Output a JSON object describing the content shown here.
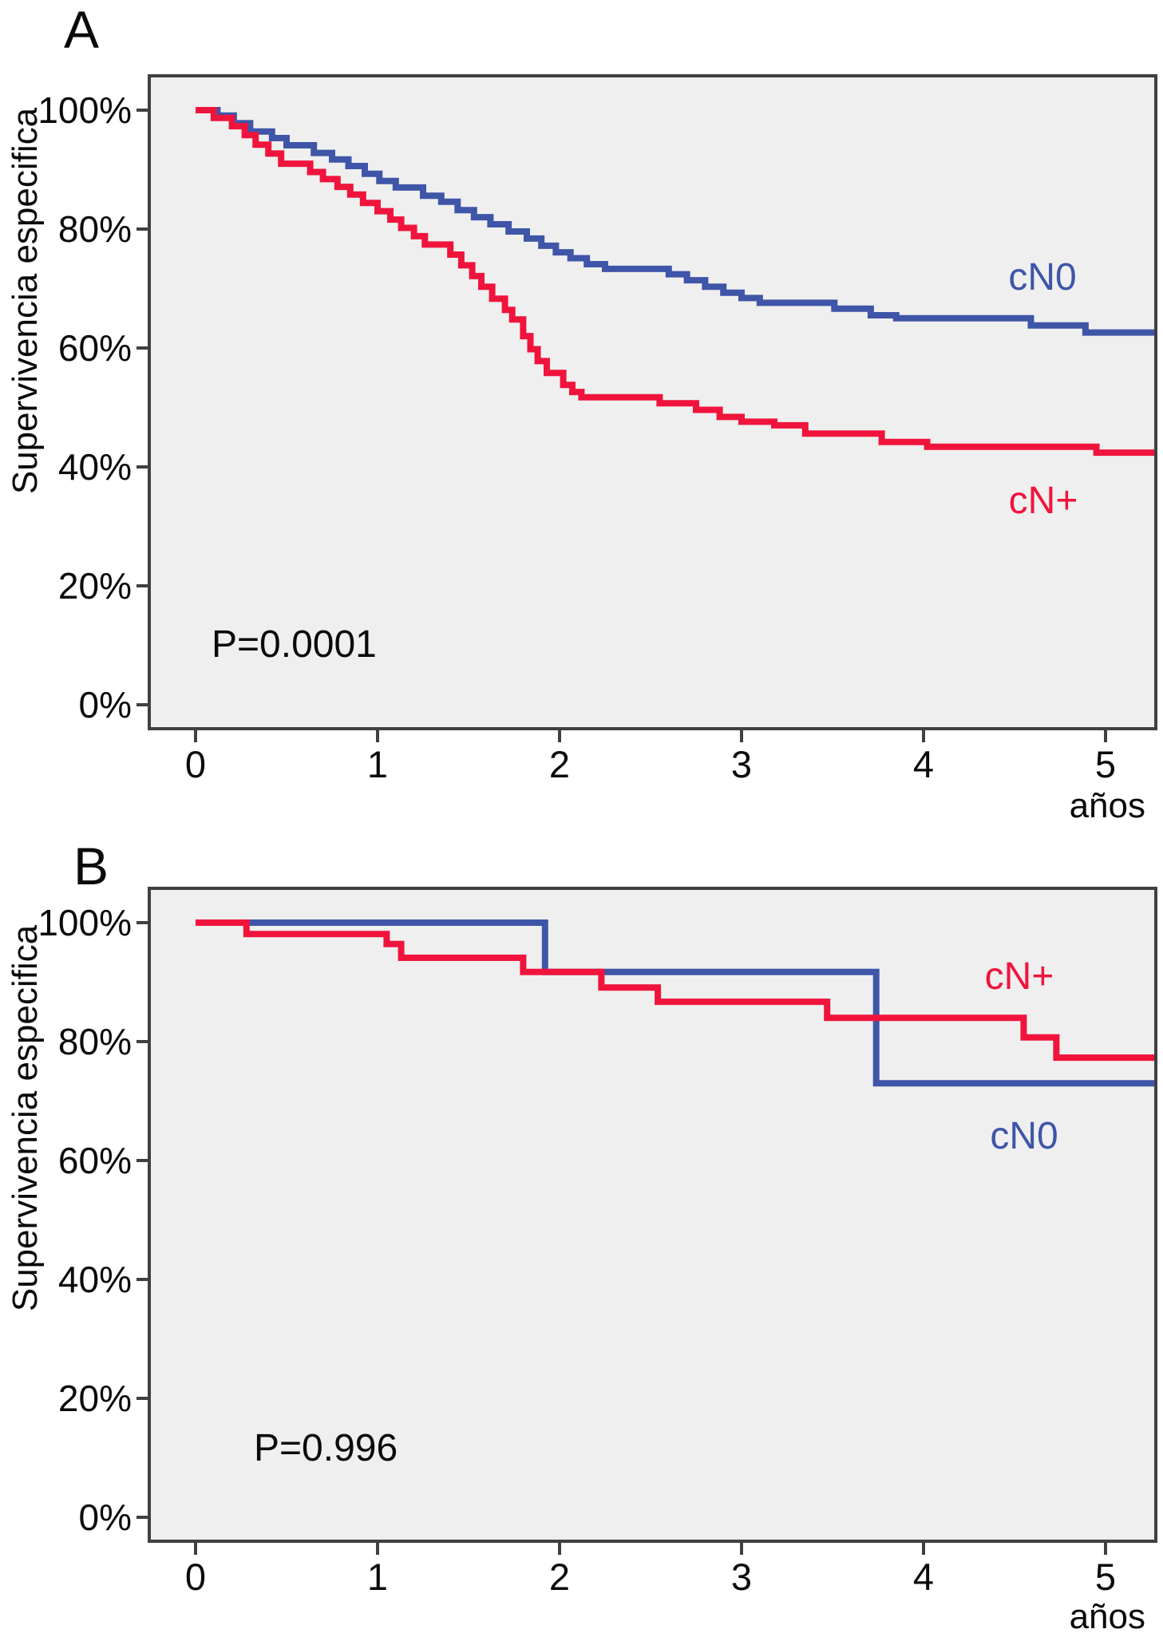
{
  "figure_labels": {
    "panel_a_letter": "A",
    "panel_b_letter": "B"
  },
  "colors": {
    "cn0_blue": "#3E55A8",
    "cnplus_red": "#F0143C",
    "plot_bg": "#EFEFEF",
    "axis_frame": "#404040"
  },
  "chart_data": [
    {
      "type": "line",
      "subtype": "kaplan-meier-step",
      "panel": "A",
      "title": "",
      "ylabel": "Supervivencia especifica",
      "xlabel": "años",
      "annotation": "P=0.0001",
      "xlim": [
        -0.25,
        5.28
      ],
      "ylim": [
        -4,
        105.8
      ],
      "xticks": [
        0,
        1,
        2,
        3,
        4,
        5
      ],
      "xtick_labels": [
        "0",
        "1",
        "2",
        "3",
        "4",
        "5"
      ],
      "yticks": [
        0,
        20,
        40,
        60,
        80,
        100
      ],
      "ytick_labels": [
        "0%",
        "20%",
        "40%",
        "60%",
        "80%",
        "100%"
      ],
      "grid": false,
      "legend_position": "inline-labels",
      "series": [
        {
          "name": "cN0",
          "color": "#3E55A8",
          "end_t": 5.27,
          "steps": [
            [
              0,
              100
            ],
            [
              0.12,
              99.1
            ],
            [
              0.21,
              97.8
            ],
            [
              0.3,
              96.4
            ],
            [
              0.42,
              95.3
            ],
            [
              0.5,
              94.1
            ],
            [
              0.65,
              92.8
            ],
            [
              0.75,
              91.7
            ],
            [
              0.84,
              90.6
            ],
            [
              0.93,
              89.3
            ],
            [
              1.01,
              88.1
            ],
            [
              1.1,
              87.0
            ],
            [
              1.25,
              85.6
            ],
            [
              1.35,
              84.6
            ],
            [
              1.44,
              83.2
            ],
            [
              1.53,
              82.0
            ],
            [
              1.62,
              80.8
            ],
            [
              1.72,
              79.6
            ],
            [
              1.82,
              78.4
            ],
            [
              1.9,
              77.2
            ],
            [
              1.98,
              76.1
            ],
            [
              2.06,
              75.1
            ],
            [
              2.15,
              74.1
            ],
            [
              2.25,
              73.3
            ],
            [
              2.6,
              72.4
            ],
            [
              2.7,
              71.4
            ],
            [
              2.8,
              70.3
            ],
            [
              2.9,
              69.3
            ],
            [
              3.0,
              68.4
            ],
            [
              3.1,
              67.6
            ],
            [
              3.51,
              66.6
            ],
            [
              3.71,
              65.5
            ],
            [
              3.85,
              65.0
            ],
            [
              4.59,
              63.8
            ],
            [
              4.89,
              62.6
            ]
          ]
        },
        {
          "name": "cN+",
          "color": "#F0143C",
          "end_t": 5.27,
          "steps": [
            [
              0,
              100
            ],
            [
              0.1,
              98.7
            ],
            [
              0.2,
              97.3
            ],
            [
              0.27,
              95.8
            ],
            [
              0.33,
              94.2
            ],
            [
              0.4,
              92.7
            ],
            [
              0.47,
              91.0
            ],
            [
              0.63,
              89.6
            ],
            [
              0.7,
              88.4
            ],
            [
              0.78,
              87.1
            ],
            [
              0.85,
              85.8
            ],
            [
              0.92,
              84.4
            ],
            [
              1.0,
              83.0
            ],
            [
              1.07,
              81.6
            ],
            [
              1.13,
              80.2
            ],
            [
              1.2,
              78.8
            ],
            [
              1.26,
              77.4
            ],
            [
              1.4,
              75.7
            ],
            [
              1.46,
              73.9
            ],
            [
              1.52,
              72.1
            ],
            [
              1.57,
              70.3
            ],
            [
              1.63,
              68.3
            ],
            [
              1.7,
              66.4
            ],
            [
              1.74,
              64.8
            ],
            [
              1.8,
              62.0
            ],
            [
              1.84,
              59.8
            ],
            [
              1.88,
              57.8
            ],
            [
              1.93,
              55.8
            ],
            [
              2.02,
              53.8
            ],
            [
              2.07,
              52.6
            ],
            [
              2.12,
              51.7
            ],
            [
              2.55,
              50.7
            ],
            [
              2.75,
              49.6
            ],
            [
              2.88,
              48.4
            ],
            [
              3.0,
              47.6
            ],
            [
              3.18,
              47.0
            ],
            [
              3.35,
              45.6
            ],
            [
              3.77,
              44.2
            ],
            [
              4.02,
              43.4
            ],
            [
              4.95,
              42.4
            ]
          ]
        }
      ]
    },
    {
      "type": "line",
      "subtype": "kaplan-meier-step",
      "panel": "B",
      "title": "",
      "ylabel": "Supervivencia especifica",
      "xlabel": "años",
      "annotation": "P=0.996",
      "xlim": [
        -0.25,
        5.28
      ],
      "ylim": [
        -4,
        105.8
      ],
      "xticks": [
        0,
        1,
        2,
        3,
        4,
        5
      ],
      "xtick_labels": [
        "0",
        "1",
        "2",
        "3",
        "4",
        "5"
      ],
      "yticks": [
        0,
        20,
        40,
        60,
        80,
        100
      ],
      "ytick_labels": [
        "0%",
        "20%",
        "40%",
        "60%",
        "80%",
        "100%"
      ],
      "grid": false,
      "legend_position": "inline-labels",
      "series": [
        {
          "name": "cN0",
          "color": "#3E55A8",
          "end_t": 5.27,
          "steps": [
            [
              0,
              100
            ],
            [
              1.92,
              91.7
            ],
            [
              3.74,
              73.0
            ]
          ]
        },
        {
          "name": "cN+",
          "color": "#F0143C",
          "end_t": 5.27,
          "steps": [
            [
              0,
              100
            ],
            [
              0.28,
              98.1
            ],
            [
              1.05,
              96.4
            ],
            [
              1.13,
              94.1
            ],
            [
              1.8,
              91.7
            ],
            [
              2.23,
              89.1
            ],
            [
              2.54,
              86.7
            ],
            [
              3.47,
              84.0
            ],
            [
              4.55,
              80.7
            ],
            [
              4.73,
              77.3
            ]
          ]
        }
      ]
    }
  ]
}
